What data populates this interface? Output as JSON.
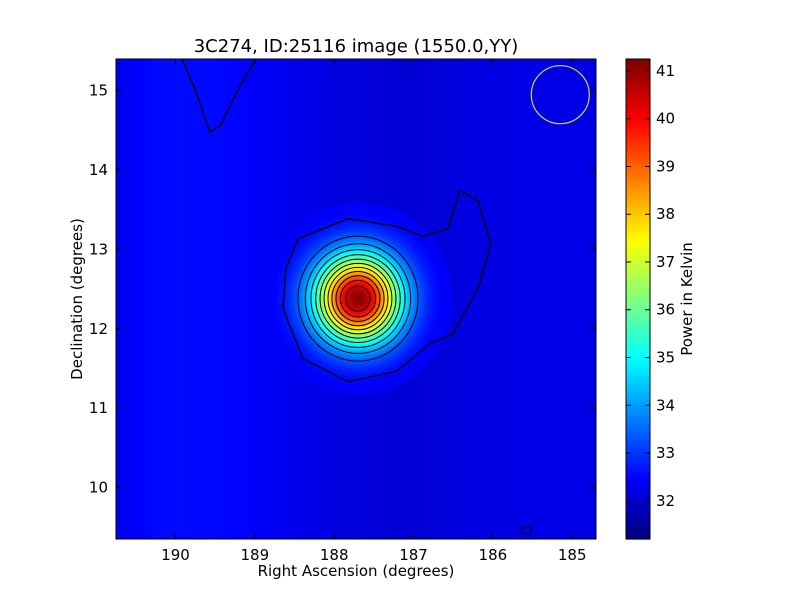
{
  "chart_data": {
    "type": "heatmap",
    "title": "3C274, ID:25116 image (1550.0,YY)",
    "xlabel": "Right Ascension (degrees)",
    "ylabel": "Declination (degrees)",
    "colorbar_label": "Power in Kelvin",
    "xlim": [
      190.75,
      184.7
    ],
    "ylim": [
      9.35,
      15.4
    ],
    "x_reversed": true,
    "x_ticks": [
      190,
      189,
      188,
      187,
      186,
      185
    ],
    "y_ticks": [
      10,
      11,
      12,
      13,
      14,
      15
    ],
    "colorbar_range": [
      31.2,
      41.25
    ],
    "colorbar_ticks": [
      32,
      33,
      34,
      35,
      36,
      37,
      38,
      39,
      40,
      41
    ],
    "colormap": "jet",
    "source": {
      "ra": 187.7,
      "dec": 12.38,
      "peak_kelvin": 41.2,
      "background_kelvin": 32.3
    },
    "contour_levels": [
      33.0,
      33.5,
      34.2,
      34.9,
      35.6,
      36.3,
      37.0,
      37.7,
      38.4,
      39.1,
      39.8,
      40.5
    ],
    "beam_circle": {
      "ra": 185.15,
      "dec": 14.95,
      "color": "#d4d44a"
    },
    "grid": false
  }
}
